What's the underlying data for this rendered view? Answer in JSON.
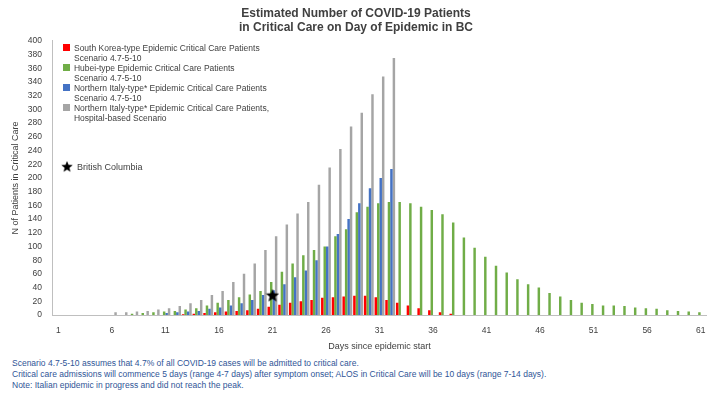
{
  "chart_data": {
    "type": "bar",
    "title": [
      "Estimated Number of COVID-19 Patients",
      "in Critical Care on Day of Epidemic in BC"
    ],
    "x_label": "Days since epidemic start",
    "y_label": "N of Patients in Critical Care",
    "footnotes": [
      "Scenario 4.7-5-10 assumes that 4.7% of all COVID-19 cases will be admitted to critical care.",
      "Critical care admissions will commence 5 days (range 4-7 days) after symptom onset; ALOS in Critical Care will be 10 days (range 7-14 days).",
      "Note: Italian epidemic in progress and did not reach the peak."
    ],
    "categories": [
      1,
      null,
      null,
      null,
      null,
      6,
      null,
      null,
      null,
      null,
      11,
      null,
      null,
      null,
      null,
      16,
      null,
      null,
      null,
      null,
      21,
      null,
      null,
      null,
      null,
      26,
      null,
      null,
      null,
      null,
      31,
      null,
      null,
      null,
      null,
      36,
      null,
      null,
      null,
      null,
      41,
      null,
      null,
      null,
      null,
      46,
      null,
      null,
      null,
      null,
      51,
      null,
      null,
      null,
      null,
      56,
      null,
      null,
      null,
      null,
      61
    ],
    "series": [
      {
        "name": "South Korea-type Epidemic Critical Care Patients\nScenario 4.7-5-10",
        "color": "#ff0000",
        "values": [
          null,
          null,
          null,
          null,
          null,
          null,
          null,
          null,
          null,
          null,
          null,
          null,
          1,
          2,
          3,
          4,
          5,
          6,
          7,
          9,
          12,
          15,
          18,
          20,
          22,
          25,
          26,
          27,
          28,
          28,
          26,
          22,
          18,
          14,
          10,
          7,
          4,
          2,
          null,
          null,
          null,
          null,
          null,
          null,
          null,
          null,
          null,
          null,
          null,
          null,
          null,
          null,
          null,
          null,
          null,
          null,
          null,
          null,
          null,
          null,
          null
        ]
      },
      {
        "name": "Hubei-type Epidemic Critical Care Patients\nScenario 4.7-5-10",
        "color": "#70ad47",
        "values": [
          null,
          null,
          null,
          null,
          null,
          null,
          null,
          2,
          3,
          4,
          5,
          6,
          8,
          10,
          14,
          18,
          22,
          26,
          30,
          35,
          48,
          63,
          75,
          87,
          95,
          100,
          115,
          125,
          150,
          158,
          163,
          165,
          165,
          163,
          158,
          153,
          147,
          135,
          113,
          98,
          85,
          72,
          62,
          52,
          45,
          40,
          32,
          27,
          22,
          18,
          16,
          14,
          14,
          13,
          11,
          10,
          9,
          7,
          6,
          5,
          4
        ]
      },
      {
        "name": "Northern Italy-type* Epidemic Critical Care Patients\nScenario 4.7-5-10",
        "color": "#4472c4",
        "values": [
          null,
          null,
          null,
          null,
          null,
          null,
          null,
          null,
          null,
          null,
          3,
          4,
          5,
          6,
          9,
          11,
          14,
          17,
          22,
          29,
          36,
          45,
          55,
          65,
          80,
          100,
          118,
          140,
          163,
          185,
          200,
          213,
          null,
          null,
          null,
          null,
          null,
          null,
          null,
          null,
          null,
          null,
          null,
          null,
          null,
          null,
          null,
          null,
          null,
          null,
          null,
          null,
          null,
          null,
          null,
          null,
          null,
          null,
          null,
          null,
          null
        ]
      },
      {
        "name": "Northern Italy-type* Epidemic Critical Care Patients,\nHospital-based Scenario",
        "color": "#a5a5a5",
        "values": [
          null,
          null,
          null,
          null,
          null,
          4,
          4,
          5,
          6,
          8,
          10,
          13,
          17,
          22,
          29,
          35,
          48,
          60,
          75,
          95,
          115,
          132,
          148,
          165,
          190,
          215,
          242,
          275,
          295,
          322,
          348,
          375,
          null,
          null,
          null,
          null,
          null,
          null,
          null,
          null,
          null,
          null,
          null,
          null,
          null,
          null,
          null,
          null,
          null,
          null,
          null,
          null,
          null,
          null,
          null,
          null,
          null,
          null,
          null,
          null,
          null
        ]
      },
      {
        "name": "British Columbia",
        "type": "scatter",
        "marker": "star",
        "color": "#000000",
        "values": [
          null,
          null,
          null,
          null,
          null,
          null,
          null,
          null,
          null,
          null,
          null,
          null,
          null,
          null,
          null,
          null,
          null,
          null,
          null,
          null,
          28,
          null,
          null,
          null,
          null,
          null,
          null,
          null,
          null,
          null,
          null,
          null,
          null,
          null,
          null,
          null,
          null,
          null,
          null,
          null,
          null,
          null,
          null,
          null,
          null,
          null,
          null,
          null,
          null,
          null,
          null,
          null,
          null,
          null,
          null,
          null,
          null,
          null,
          null,
          null,
          null
        ]
      }
    ],
    "ylim": [
      0,
      400
    ],
    "yticks": [
      0,
      20,
      40,
      60,
      80,
      100,
      120,
      140,
      160,
      180,
      200,
      220,
      240,
      260,
      280,
      300,
      320,
      340,
      360,
      380,
      400
    ],
    "grid": false,
    "legend": "upper left"
  }
}
